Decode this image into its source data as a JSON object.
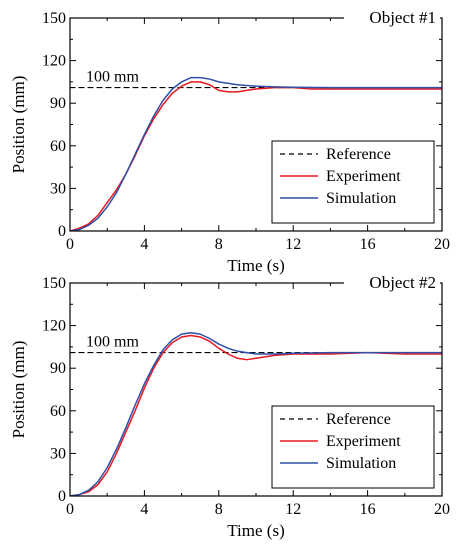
{
  "chart_data": [
    {
      "type": "line",
      "object_label": "Object #1",
      "annotation": "100 mm",
      "xlabel": "Time (s)",
      "ylabel": "Position (mm)",
      "xlim": [
        0,
        20
      ],
      "ylim": [
        0,
        150
      ],
      "x_ticks": [
        "0",
        "4",
        "8",
        "12",
        "16",
        "20"
      ],
      "y_ticks": [
        "0",
        "30",
        "60",
        "90",
        "120",
        "150"
      ],
      "legend_position": "bottom-right",
      "grid": false,
      "series": [
        {
          "name": "Reference",
          "color": "#000000",
          "dash": "5,4",
          "points": [
            [
              0,
              101
            ],
            [
              20,
              101
            ]
          ]
        },
        {
          "name": "Experiment",
          "color": "#e8191e",
          "points": [
            [
              0,
              0
            ],
            [
              0.5,
              2
            ],
            [
              1,
              5
            ],
            [
              1.5,
              11
            ],
            [
              2,
              20
            ],
            [
              2.5,
              29
            ],
            [
              3,
              40
            ],
            [
              3.5,
              53
            ],
            [
              4,
              67
            ],
            [
              4.5,
              79
            ],
            [
              5,
              89
            ],
            [
              5.5,
              97
            ],
            [
              6,
              102
            ],
            [
              6.5,
              105
            ],
            [
              7,
              105
            ],
            [
              7.5,
              103
            ],
            [
              8,
              99
            ],
            [
              8.5,
              98
            ],
            [
              9,
              98
            ],
            [
              9.5,
              99
            ],
            [
              10,
              100
            ],
            [
              11,
              101
            ],
            [
              12,
              101
            ],
            [
              13,
              100
            ],
            [
              14,
              100
            ],
            [
              16,
              100
            ],
            [
              18,
              100
            ],
            [
              20,
              100
            ]
          ]
        },
        {
          "name": "Simulation",
          "color": "#2f4fa8",
          "points": [
            [
              0,
              0
            ],
            [
              0.5,
              1
            ],
            [
              1,
              4
            ],
            [
              1.5,
              9
            ],
            [
              2,
              17
            ],
            [
              2.5,
              27
            ],
            [
              3,
              40
            ],
            [
              3.5,
              54
            ],
            [
              4,
              68
            ],
            [
              4.5,
              81
            ],
            [
              5,
              92
            ],
            [
              5.5,
              100
            ],
            [
              6,
              105
            ],
            [
              6.5,
              108
            ],
            [
              7,
              108
            ],
            [
              7.5,
              107
            ],
            [
              8,
              105
            ],
            [
              9,
              103
            ],
            [
              10,
              102
            ],
            [
              11,
              101.5
            ],
            [
              12,
              101.2
            ],
            [
              14,
              101
            ],
            [
              16,
              101
            ],
            [
              18,
              101
            ],
            [
              20,
              101
            ]
          ]
        }
      ]
    },
    {
      "type": "line",
      "object_label": "Object #2",
      "annotation": "100 mm",
      "xlabel": "Time (s)",
      "ylabel": "Position (mm)",
      "xlim": [
        0,
        20
      ],
      "ylim": [
        0,
        150
      ],
      "x_ticks": [
        "0",
        "4",
        "8",
        "12",
        "16",
        "20"
      ],
      "y_ticks": [
        "0",
        "30",
        "60",
        "90",
        "120",
        "150"
      ],
      "legend_position": "bottom-right",
      "grid": false,
      "series": [
        {
          "name": "Reference",
          "color": "#000000",
          "dash": "5,4",
          "points": [
            [
              0,
              101
            ],
            [
              20,
              101
            ]
          ]
        },
        {
          "name": "Experiment",
          "color": "#e8191e",
          "points": [
            [
              0,
              0
            ],
            [
              0.5,
              1
            ],
            [
              1,
              3
            ],
            [
              1.5,
              8
            ],
            [
              2,
              17
            ],
            [
              2.5,
              30
            ],
            [
              3,
              45
            ],
            [
              3.5,
              60
            ],
            [
              4,
              76
            ],
            [
              4.5,
              90
            ],
            [
              5,
              101
            ],
            [
              5.5,
              108
            ],
            [
              6,
              112
            ],
            [
              6.5,
              113
            ],
            [
              7,
              112
            ],
            [
              7.5,
              109
            ],
            [
              8,
              104
            ],
            [
              8.5,
              100
            ],
            [
              9,
              97
            ],
            [
              9.5,
              96
            ],
            [
              10,
              97
            ],
            [
              11,
              99
            ],
            [
              12,
              100
            ],
            [
              14,
              100
            ],
            [
              16,
              101
            ],
            [
              18,
              100
            ],
            [
              20,
              100
            ]
          ]
        },
        {
          "name": "Simulation",
          "color": "#2f4fa8",
          "points": [
            [
              0,
              0
            ],
            [
              0.5,
              1
            ],
            [
              1,
              4
            ],
            [
              1.5,
              10
            ],
            [
              2,
              20
            ],
            [
              2.5,
              33
            ],
            [
              3,
              48
            ],
            [
              3.5,
              64
            ],
            [
              4,
              79
            ],
            [
              4.5,
              92
            ],
            [
              5,
              103
            ],
            [
              5.5,
              110
            ],
            [
              6,
              114
            ],
            [
              6.5,
              115
            ],
            [
              7,
              114
            ],
            [
              7.5,
              111
            ],
            [
              8,
              107
            ],
            [
              8.5,
              104
            ],
            [
              9,
              102
            ],
            [
              9.5,
              101
            ],
            [
              10,
              100
            ],
            [
              11,
              100
            ],
            [
              12,
              100.5
            ],
            [
              14,
              101
            ],
            [
              16,
              101
            ],
            [
              18,
              101
            ],
            [
              20,
              101
            ]
          ]
        }
      ]
    }
  ]
}
